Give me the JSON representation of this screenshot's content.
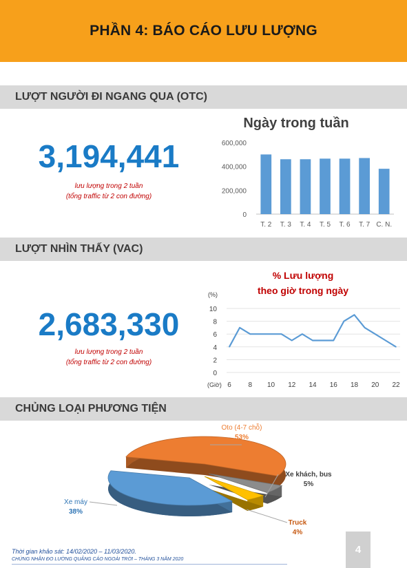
{
  "header": {
    "title": "PHẦN 4: BÁO CÁO LƯU LƯỢNG"
  },
  "otc": {
    "heading": "LƯỢT NGƯỜI ĐI NGANG QUA (OTC)",
    "value": "3,194,441",
    "note1": "lưu lượng trong 2 tuần",
    "note2": "(tổng traffic từ 2 con đường)"
  },
  "vac": {
    "heading": "LƯỢT NHÌN THẤY  (VAC)",
    "value": "2,683,330",
    "note1": "lưu lượng trong 2 tuần",
    "note2": "(tổng traffic từ 2 con đường)"
  },
  "vehicles": {
    "heading": "CHỦNG LOẠI PHƯƠNG TIỆN"
  },
  "footer": {
    "period": "Thời gian khảo sát: 14/02/2020 – 11/03/2020.",
    "cert": "CHỨNG NHẬN ĐO LƯỜNG QUẢNG CÁO NGOÀI TRỜI – THÁNG 3 NĂM 2020",
    "page": "4"
  },
  "chart_data": [
    {
      "type": "bar",
      "title": "Ngày trong tuần",
      "categories": [
        "T. 2",
        "T. 3",
        "T. 4",
        "T. 5",
        "T. 6",
        "T. 7",
        "C. N."
      ],
      "values": [
        500000,
        460000,
        460000,
        465000,
        465000,
        470000,
        380000
      ],
      "yticks": [
        "0",
        "200,000",
        "400,000",
        "600,000"
      ],
      "ylim": [
        0,
        600000
      ],
      "grid": false,
      "color": "#5b9bd5"
    },
    {
      "type": "line",
      "title": "% Lưu lượng",
      "subtitle": "theo giờ trong ngày",
      "ylabel": "(%)",
      "xlabel": "(Giờ)",
      "x": [
        6,
        7,
        8,
        9,
        10,
        11,
        12,
        13,
        14,
        15,
        16,
        17,
        18,
        19,
        20,
        21,
        22
      ],
      "y": [
        4,
        7,
        6,
        6,
        6,
        6,
        5,
        6,
        5,
        5,
        5,
        8,
        9,
        7,
        6,
        5,
        4
      ],
      "xticks": [
        "6",
        "8",
        "10",
        "12",
        "14",
        "16",
        "18",
        "20",
        "22"
      ],
      "yticks": [
        "0",
        "2",
        "4",
        "6",
        "8",
        "10"
      ],
      "ylim": [
        0,
        10
      ],
      "grid": true,
      "color": "#5b9bd5",
      "title_color": "#c00000"
    },
    {
      "type": "pie",
      "slices": [
        {
          "label": "Oto (4-7 chỗ)",
          "pct_label": "53%",
          "value": 53,
          "color": "#ed7d31",
          "label_color": "#ed7d31"
        },
        {
          "label": "Xe khách, bus",
          "pct_label": "5%",
          "value": 5,
          "color": "#8c8c8c",
          "label_color": "#404040"
        },
        {
          "label": "Truck",
          "pct_label": "4%",
          "value": 4,
          "color": "#ffc000",
          "label_color": "#c65911"
        },
        {
          "label": "Xe máy",
          "pct_label": "38%",
          "value": 38,
          "color": "#5b9bd5",
          "label_color": "#2f75b5"
        }
      ]
    }
  ]
}
